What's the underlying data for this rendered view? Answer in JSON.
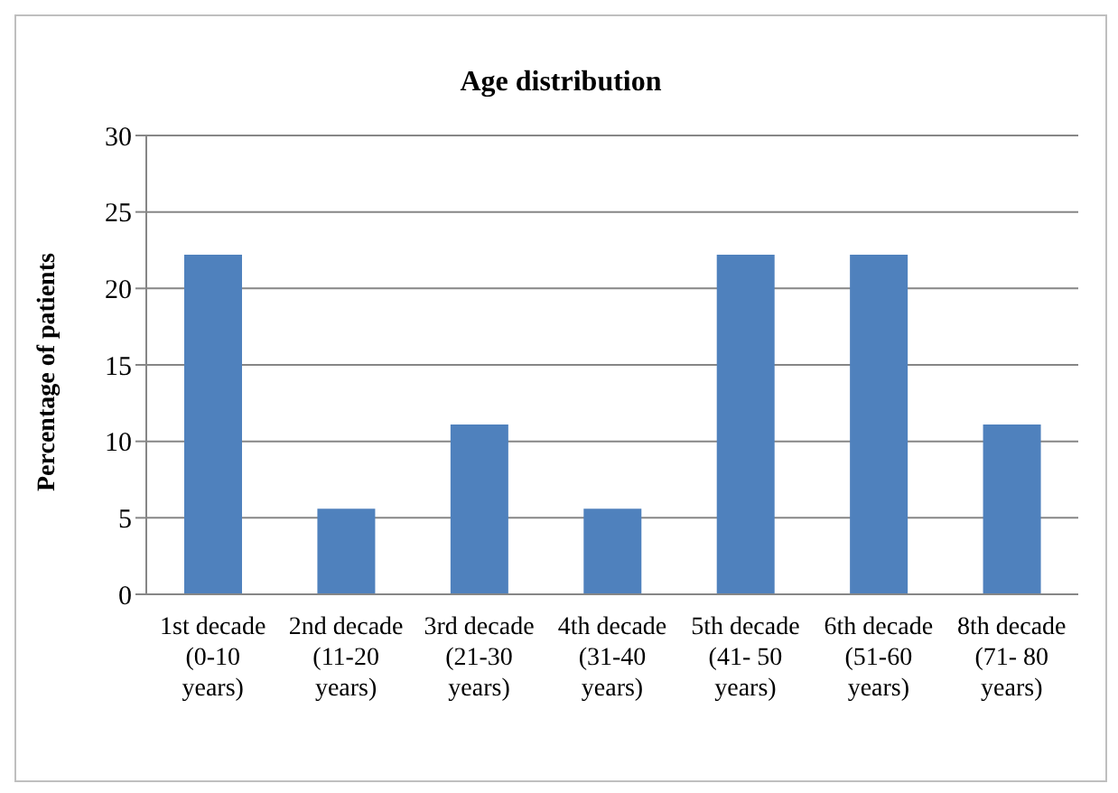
{
  "chart_data": {
    "type": "bar",
    "title": "Age distribution",
    "ylabel": "Percentage of patients",
    "categories": [
      "1st decade (0-10 years)",
      "2nd decade (11-20 years)",
      "3rd decade (21-30 years)",
      "4th decade (31-40 years)",
      "5th decade (41- 50 years)",
      "6th decade (51-60 years)",
      "8th decade (71- 80 years)"
    ],
    "values": [
      22.2,
      5.6,
      11.1,
      5.6,
      22.2,
      22.2,
      11.1
    ],
    "color": "#4f81bd",
    "ylim": [
      0,
      30
    ],
    "yticks": [
      0,
      5,
      10,
      15,
      20,
      25,
      30
    ],
    "grid": "y",
    "legend": false
  }
}
